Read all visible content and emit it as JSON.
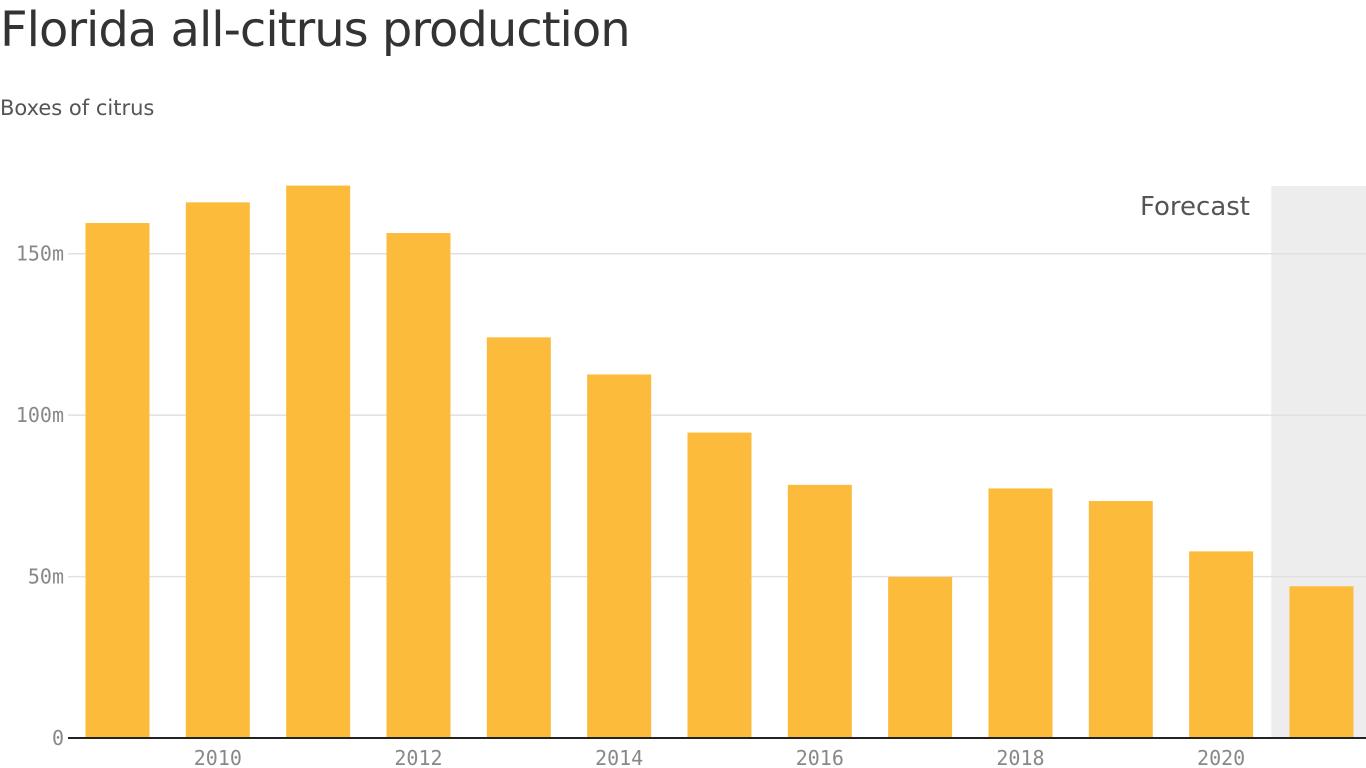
{
  "chart_data": {
    "type": "bar",
    "title": "Florida all-citrus production",
    "subtitle": "Boxes of citrus",
    "categories": [
      "2009",
      "2010",
      "2011",
      "2012",
      "2013",
      "2014",
      "2015",
      "2016",
      "2017",
      "2018",
      "2019",
      "2020",
      "2021"
    ],
    "values": [
      159.5,
      165.9,
      171.1,
      156.4,
      124.1,
      112.6,
      94.6,
      78.4,
      49.9,
      77.3,
      73.4,
      57.8,
      47.0
    ],
    "x_tick_labels": [
      "2010",
      "2012",
      "2014",
      "2016",
      "2018",
      "2020"
    ],
    "y_ticks": [
      {
        "value": 0,
        "label": "0"
      },
      {
        "value": 50,
        "label": "50m"
      },
      {
        "value": 100,
        "label": "100m"
      },
      {
        "value": 150,
        "label": "150m"
      }
    ],
    "ylabel": "",
    "xlabel": "",
    "ylim": [
      0,
      180
    ],
    "grid": true,
    "forecast_categories": [
      "2021"
    ],
    "forecast_label": "Forecast",
    "colors": {
      "bar": "#fdbb3c",
      "forecast_band": "#ededed",
      "grid": "#e1e1e1",
      "axis": "#222222",
      "tick_text": "#888888"
    }
  }
}
